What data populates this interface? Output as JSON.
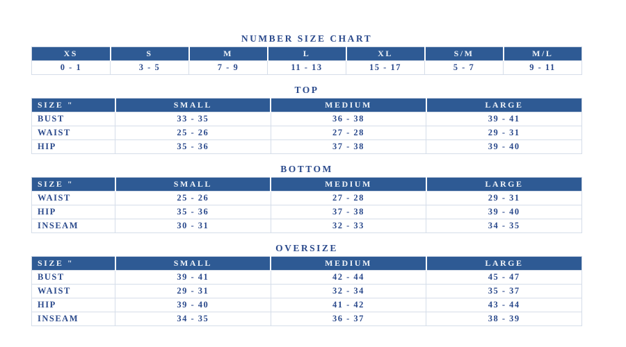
{
  "colors": {
    "header_background": "#2E5A94",
    "header_text": "#EFF3F8",
    "body_text": "#2B4A8C",
    "grid_border": "#C9D3E2",
    "page_background": "#FFFFFF"
  },
  "tables": [
    {
      "title": "NUMBER SIZE CHART",
      "columns": [
        "XS",
        "S",
        "M",
        "L",
        "XL",
        "S/M",
        "M/L"
      ],
      "rows": [
        [
          "0 - 1",
          "3 - 5",
          "7 - 9",
          "11 - 13",
          "15 - 17",
          "5 - 7",
          "9 - 11"
        ]
      ]
    },
    {
      "title": "TOP",
      "columns": [
        "SIZE \"",
        "SMALL",
        "MEDIUM",
        "LARGE"
      ],
      "rows": [
        [
          "BUST",
          "33 - 35",
          "36 - 38",
          "39 - 41"
        ],
        [
          "WAIST",
          "25 - 26",
          "27 - 28",
          "29 - 31"
        ],
        [
          "HIP",
          "35 - 36",
          "37 - 38",
          "39 - 40"
        ]
      ]
    },
    {
      "title": "BOTTOM",
      "columns": [
        "SIZE \"",
        "SMALL",
        "MEDIUM",
        "LARGE"
      ],
      "rows": [
        [
          "WAIST",
          "25 - 26",
          "27 - 28",
          "29 - 31"
        ],
        [
          "HIP",
          "35 - 36",
          "37 - 38",
          "39 - 40"
        ],
        [
          "INSEAM",
          "30 - 31",
          "32 - 33",
          "34 - 35"
        ]
      ]
    },
    {
      "title": "OVERSIZE",
      "columns": [
        "SIZE \"",
        "SMALL",
        "MEDIUM",
        "LARGE"
      ],
      "rows": [
        [
          "BUST",
          "39 - 41",
          "42 - 44",
          "45 - 47"
        ],
        [
          "WAIST",
          "29 - 31",
          "32 - 34",
          "35 - 37"
        ],
        [
          "HIP",
          "39 - 40",
          "41 - 42",
          "43 - 44"
        ],
        [
          "INSEAM",
          "34 - 35",
          "36 - 37",
          "38 - 39"
        ]
      ]
    }
  ]
}
